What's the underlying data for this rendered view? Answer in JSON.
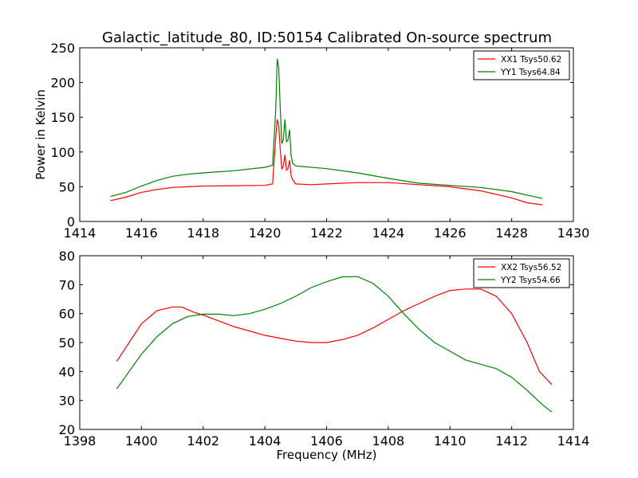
{
  "title": "Galactic_latitude_80, ID:50154 Calibrated On-source spectrum",
  "colors": {
    "red": "#ff0000",
    "green": "#008000"
  },
  "chart_data": [
    {
      "type": "line",
      "xlabel": "",
      "ylabel": "Power in Kelvin",
      "xlim": [
        1414,
        1430
      ],
      "ylim": [
        0,
        250
      ],
      "xticks": [
        1414,
        1416,
        1418,
        1420,
        1422,
        1424,
        1426,
        1428,
        1430
      ],
      "yticks": [
        0,
        50,
        100,
        150,
        200,
        250
      ],
      "legend_position": "top-right",
      "series": [
        {
          "name": "XX1 Tsys50.62",
          "color": "#ff0000",
          "points": [
            [
              1415.0,
              30
            ],
            [
              1415.5,
              35
            ],
            [
              1416.0,
              42
            ],
            [
              1416.5,
              46
            ],
            [
              1417.0,
              49
            ],
            [
              1417.5,
              50
            ],
            [
              1418.0,
              51
            ],
            [
              1419.0,
              51.5
            ],
            [
              1420.0,
              52
            ],
            [
              1420.25,
              54
            ],
            [
              1420.35,
              120
            ],
            [
              1420.4,
              147
            ],
            [
              1420.45,
              138
            ],
            [
              1420.5,
              102
            ],
            [
              1420.55,
              75
            ],
            [
              1420.6,
              80
            ],
            [
              1420.65,
              96
            ],
            [
              1420.7,
              74
            ],
            [
              1420.75,
              76
            ],
            [
              1420.8,
              88
            ],
            [
              1420.85,
              66
            ],
            [
              1420.9,
              60
            ],
            [
              1421.0,
              54
            ],
            [
              1421.5,
              53
            ],
            [
              1422.0,
              54
            ],
            [
              1423.0,
              56
            ],
            [
              1424.0,
              56
            ],
            [
              1425.0,
              53
            ],
            [
              1426.0,
              50
            ],
            [
              1427.0,
              44
            ],
            [
              1428.0,
              34
            ],
            [
              1428.5,
              27
            ],
            [
              1429.0,
              24
            ]
          ]
        },
        {
          "name": "YY1 Tsys64.84",
          "color": "#008000",
          "points": [
            [
              1415.0,
              36
            ],
            [
              1415.5,
              42
            ],
            [
              1416.0,
              51
            ],
            [
              1416.5,
              59
            ],
            [
              1417.0,
              65
            ],
            [
              1417.5,
              68
            ],
            [
              1418.0,
              70
            ],
            [
              1419.0,
              73
            ],
            [
              1420.0,
              78
            ],
            [
              1420.25,
              81
            ],
            [
              1420.35,
              160
            ],
            [
              1420.4,
              234
            ],
            [
              1420.45,
              222
            ],
            [
              1420.5,
              160
            ],
            [
              1420.55,
              112
            ],
            [
              1420.6,
              118
            ],
            [
              1420.65,
              147
            ],
            [
              1420.7,
              115
            ],
            [
              1420.75,
              117
            ],
            [
              1420.8,
              132
            ],
            [
              1420.85,
              95
            ],
            [
              1420.9,
              84
            ],
            [
              1421.0,
              80
            ],
            [
              1422.0,
              76
            ],
            [
              1423.0,
              70
            ],
            [
              1424.0,
              62
            ],
            [
              1425.0,
              55
            ],
            [
              1426.0,
              52
            ],
            [
              1427.0,
              49
            ],
            [
              1428.0,
              43
            ],
            [
              1428.5,
              38
            ],
            [
              1429.0,
              33
            ]
          ]
        }
      ]
    },
    {
      "type": "line",
      "xlabel": "Frequency (MHz)",
      "ylabel": "",
      "xlim": [
        1398,
        1414
      ],
      "ylim": [
        20,
        80
      ],
      "xticks": [
        1398,
        1400,
        1402,
        1404,
        1406,
        1408,
        1410,
        1412,
        1414
      ],
      "yticks": [
        20,
        30,
        40,
        50,
        60,
        70,
        80
      ],
      "legend_position": "top-right",
      "series": [
        {
          "name": "XX2 Tsys56.52",
          "color": "#ff0000",
          "points": [
            [
              1399.2,
              43.5
            ],
            [
              1399.6,
              50
            ],
            [
              1400.0,
              56.5
            ],
            [
              1400.5,
              61
            ],
            [
              1401.0,
              62.3
            ],
            [
              1401.3,
              62.3
            ],
            [
              1401.7,
              60.5
            ],
            [
              1402.0,
              59.5
            ],
            [
              1402.5,
              57.5
            ],
            [
              1403.0,
              55.5
            ],
            [
              1403.5,
              54
            ],
            [
              1404.0,
              52.5
            ],
            [
              1404.5,
              51.5
            ],
            [
              1405.0,
              50.5
            ],
            [
              1405.5,
              50
            ],
            [
              1406.0,
              50
            ],
            [
              1406.5,
              51
            ],
            [
              1407.0,
              52.5
            ],
            [
              1407.5,
              55
            ],
            [
              1408.0,
              58
            ],
            [
              1408.5,
              61
            ],
            [
              1409.0,
              63.5
            ],
            [
              1409.5,
              66
            ],
            [
              1410.0,
              68
            ],
            [
              1410.5,
              68.5
            ],
            [
              1411.0,
              68.5
            ],
            [
              1411.5,
              66
            ],
            [
              1412.0,
              60
            ],
            [
              1412.5,
              50
            ],
            [
              1412.9,
              40
            ],
            [
              1413.3,
              35.5
            ]
          ]
        },
        {
          "name": "YY2 Tsys54.66",
          "color": "#008000",
          "points": [
            [
              1399.2,
              34
            ],
            [
              1399.6,
              40
            ],
            [
              1400.0,
              46
            ],
            [
              1400.5,
              52
            ],
            [
              1401.0,
              56.5
            ],
            [
              1401.5,
              59
            ],
            [
              1402.0,
              59.8
            ],
            [
              1402.5,
              59.8
            ],
            [
              1403.0,
              59.3
            ],
            [
              1403.5,
              60
            ],
            [
              1404.0,
              61.5
            ],
            [
              1404.5,
              63.5
            ],
            [
              1405.0,
              66
            ],
            [
              1405.5,
              69
            ],
            [
              1406.0,
              71
            ],
            [
              1406.5,
              72.7
            ],
            [
              1407.0,
              72.8
            ],
            [
              1407.5,
              70.5
            ],
            [
              1408.0,
              66
            ],
            [
              1408.5,
              60
            ],
            [
              1409.0,
              54.5
            ],
            [
              1409.5,
              50
            ],
            [
              1410.0,
              47
            ],
            [
              1410.5,
              44
            ],
            [
              1411.0,
              42.5
            ],
            [
              1411.5,
              41
            ],
            [
              1412.0,
              38
            ],
            [
              1412.5,
              33.5
            ],
            [
              1413.0,
              28.5
            ],
            [
              1413.3,
              26
            ]
          ]
        }
      ]
    }
  ]
}
